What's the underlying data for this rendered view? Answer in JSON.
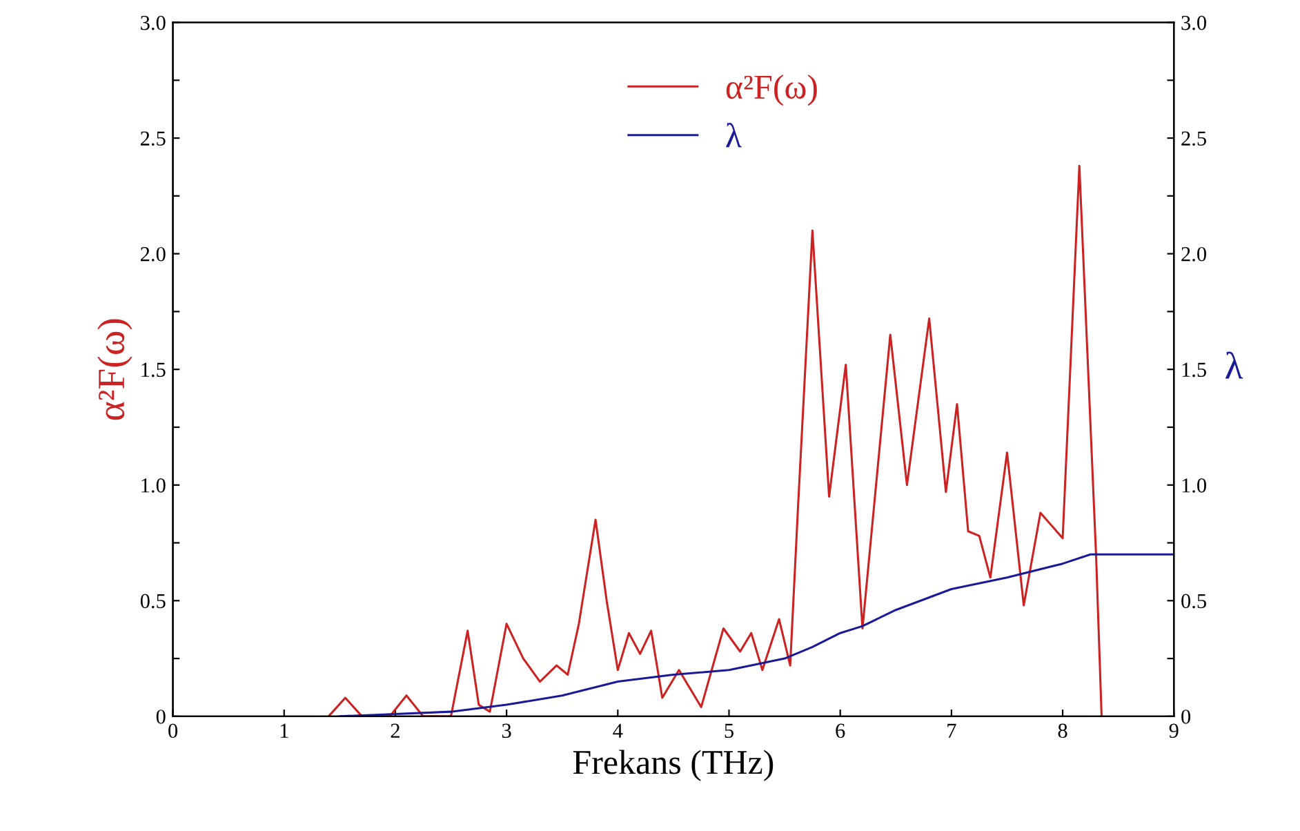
{
  "chart_data": {
    "type": "line",
    "xlabel": "Frekans (THz)",
    "ylabel": "α²F(ω)",
    "y2label": "λ",
    "xlim": [
      0,
      9
    ],
    "xticks": [
      0,
      1,
      2,
      3,
      4,
      5,
      6,
      7,
      8,
      9
    ],
    "ylim": [
      0,
      3
    ],
    "yticks": [
      {
        "value": 0,
        "label": "0"
      },
      {
        "value": 0.25,
        "label": null
      },
      {
        "value": 0.5,
        "label": "0.5"
      },
      {
        "value": 0.75,
        "label": null
      },
      {
        "value": 1,
        "label": "1.0"
      },
      {
        "value": 1.25,
        "label": null
      },
      {
        "value": 1.5,
        "label": "1.5"
      },
      {
        "value": 1.75,
        "label": null
      },
      {
        "value": 2,
        "label": "2.0"
      },
      {
        "value": 2.25,
        "label": null
      },
      {
        "value": 2.5,
        "label": "2.5"
      },
      {
        "value": 2.75,
        "label": null
      },
      {
        "value": 3,
        "label": "3.0"
      }
    ],
    "y2lim": [
      0,
      3
    ],
    "y2ticks": [
      {
        "value": 0,
        "label": "0"
      },
      {
        "value": 0.25,
        "label": null
      },
      {
        "value": 0.5,
        "label": "0.5"
      },
      {
        "value": 0.75,
        "label": null
      },
      {
        "value": 1,
        "label": "1.0"
      },
      {
        "value": 1.25,
        "label": null
      },
      {
        "value": 1.5,
        "label": "1.5"
      },
      {
        "value": 1.75,
        "label": null
      },
      {
        "value": 2,
        "label": "2.0"
      },
      {
        "value": 2.25,
        "label": null
      },
      {
        "value": 2.5,
        "label": "2.5"
      },
      {
        "value": 2.75,
        "label": null
      },
      {
        "value": 3,
        "label": "3.0"
      }
    ],
    "grid": false,
    "legend": "top",
    "line_style": "solid",
    "marker": "none",
    "series": [
      {
        "name": "α²F(ω)",
        "color": "#cc2222",
        "x": [
          1.4,
          1.55,
          1.7,
          1.95,
          2.1,
          2.25,
          2.5,
          2.65,
          2.75,
          2.85,
          3.0,
          3.15,
          3.3,
          3.45,
          3.55,
          3.65,
          3.8,
          3.9,
          4.0,
          4.1,
          4.2,
          4.3,
          4.4,
          4.55,
          4.75,
          4.95,
          5.1,
          5.2,
          5.3,
          5.45,
          5.55,
          5.62,
          5.75,
          5.9,
          6.05,
          6.2,
          6.45,
          6.6,
          6.8,
          6.95,
          7.05,
          7.15,
          7.25,
          7.35,
          7.5,
          7.65,
          7.8,
          8.0,
          8.15,
          8.3,
          8.35
        ],
        "values": [
          0,
          0.08,
          0,
          0,
          0.09,
          0,
          0,
          0.37,
          0.05,
          0.02,
          0.4,
          0.25,
          0.15,
          0.22,
          0.18,
          0.4,
          0.85,
          0.5,
          0.2,
          0.36,
          0.27,
          0.37,
          0.08,
          0.2,
          0.04,
          0.38,
          0.28,
          0.36,
          0.2,
          0.42,
          0.22,
          0.9,
          2.1,
          0.95,
          1.52,
          0.38,
          1.65,
          1.0,
          1.72,
          0.97,
          1.35,
          0.8,
          0.78,
          0.6,
          1.14,
          0.48,
          0.88,
          0.77,
          2.38,
          0.7,
          0
        ]
      },
      {
        "name": "λ",
        "color": "#1a1a99",
        "axis": "y2",
        "x": [
          1.5,
          2.0,
          2.5,
          3.0,
          3.5,
          4.0,
          4.5,
          5.0,
          5.5,
          5.75,
          6.0,
          6.2,
          6.5,
          7.0,
          7.5,
          8.0,
          8.25,
          9.0
        ],
        "values": [
          0,
          0.01,
          0.02,
          0.05,
          0.09,
          0.15,
          0.18,
          0.2,
          0.25,
          0.3,
          0.36,
          0.39,
          0.46,
          0.55,
          0.6,
          0.66,
          0.7,
          0.7
        ]
      }
    ]
  }
}
